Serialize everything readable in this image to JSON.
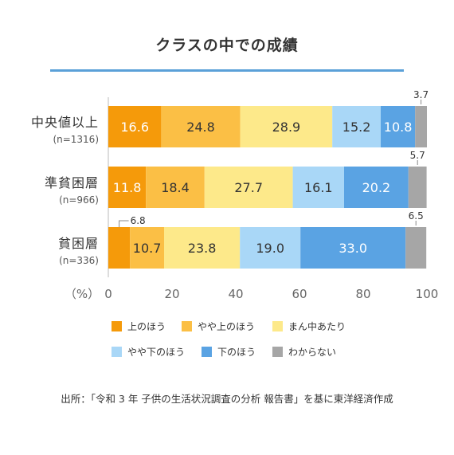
{
  "chart_data": {
    "type": "bar",
    "orientation": "horizontal",
    "stacked": true,
    "title": "クラスの中での成績",
    "categories": [
      {
        "label": "中央値以上",
        "sublabel": "(n=1316)"
      },
      {
        "label": "準貧困層",
        "sublabel": "(n=966)"
      },
      {
        "label": "貧困層",
        "sublabel": "(n=336)"
      }
    ],
    "series": [
      {
        "name": "上のほう",
        "color": "#f59a0a",
        "values": [
          16.6,
          11.8,
          6.8
        ],
        "label_color": "#ffffff"
      },
      {
        "name": "やや上のほう",
        "color": "#fbbf45",
        "values": [
          24.8,
          18.4,
          10.7
        ],
        "label_color": "#333333"
      },
      {
        "name": "まん中あたり",
        "color": "#fde98a",
        "values": [
          28.9,
          27.7,
          23.8
        ],
        "label_color": "#333333"
      },
      {
        "name": "やや下のほう",
        "color": "#a9d7f7",
        "values": [
          15.2,
          16.1,
          19.0
        ],
        "label_color": "#333333"
      },
      {
        "name": "下のほう",
        "color": "#5aa3e3",
        "values": [
          10.8,
          20.2,
          33.0
        ],
        "label_color": "#ffffff"
      },
      {
        "name": "わからない",
        "color": "#a6a6a6",
        "values": [
          3.7,
          5.7,
          6.5
        ],
        "label_color": "#333333"
      }
    ],
    "value_labels": [
      [
        "16.6",
        "24.8",
        "28.9",
        "15.2",
        "10.8",
        "3.7"
      ],
      [
        "11.8",
        "18.4",
        "27.7",
        "16.1",
        "20.2",
        "5.7"
      ],
      [
        "6.8",
        "10.7",
        "23.8",
        "19.0",
        "33.0",
        "6.5"
      ]
    ],
    "x_axis": {
      "unit_label": "（%）",
      "ticks": [
        0,
        20,
        40,
        60,
        80,
        100
      ],
      "range": [
        0,
        100
      ]
    },
    "legend_placement": "bottom",
    "grid": false
  },
  "source": "出所：「令和 3 年 子供の生活状況調査の分析 報告書」を基に東洋経済作成"
}
